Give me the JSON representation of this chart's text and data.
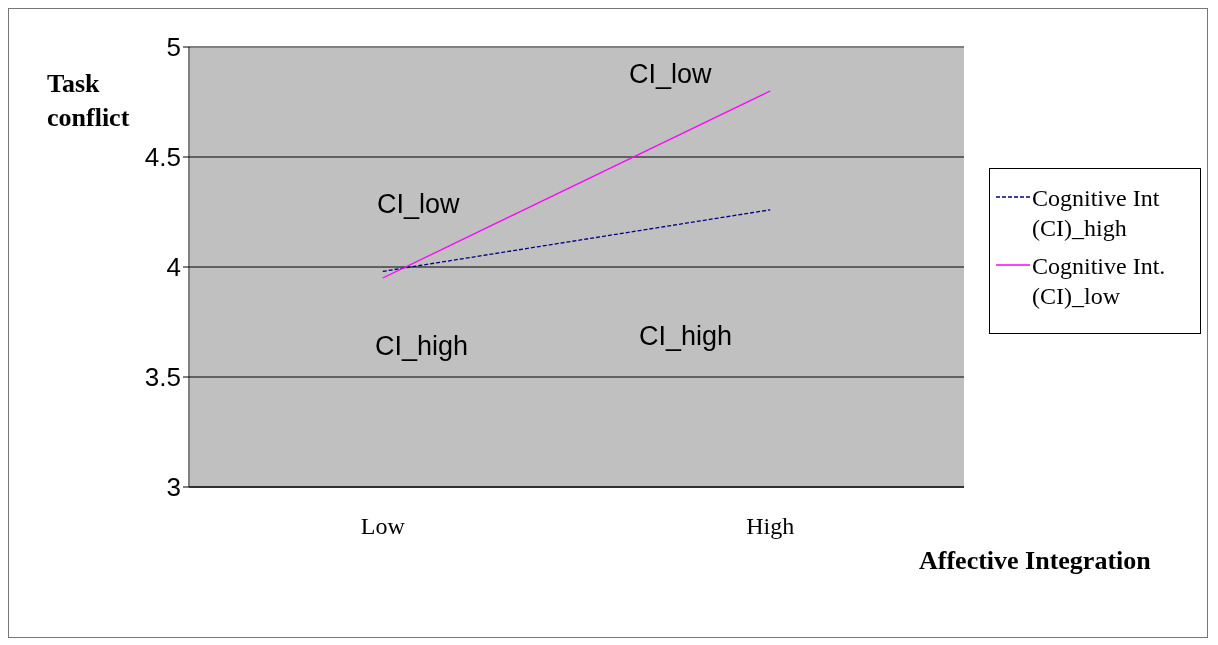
{
  "chart_data": {
    "type": "line",
    "xlabel": "Affective Integration",
    "ylabel": "Task conflict",
    "categories": [
      "Low",
      "High"
    ],
    "series": [
      {
        "name": "Cognitive Int (CI)_high",
        "color": "#000080",
        "values": [
          3.98,
          4.26
        ],
        "line_style": "dashed"
      },
      {
        "name": "Cognitive Int. (CI)_low",
        "color": "#ff00ff",
        "values": [
          3.95,
          4.8
        ],
        "line_style": "solid"
      }
    ],
    "ylim": [
      3,
      5
    ],
    "yticks": [
      3,
      3.5,
      4,
      4.5,
      5
    ],
    "grid": "y",
    "legend": "right",
    "marker": "none",
    "annotations": [
      "CI_low",
      "CI_low",
      "CI_high",
      "CI_high"
    ]
  }
}
